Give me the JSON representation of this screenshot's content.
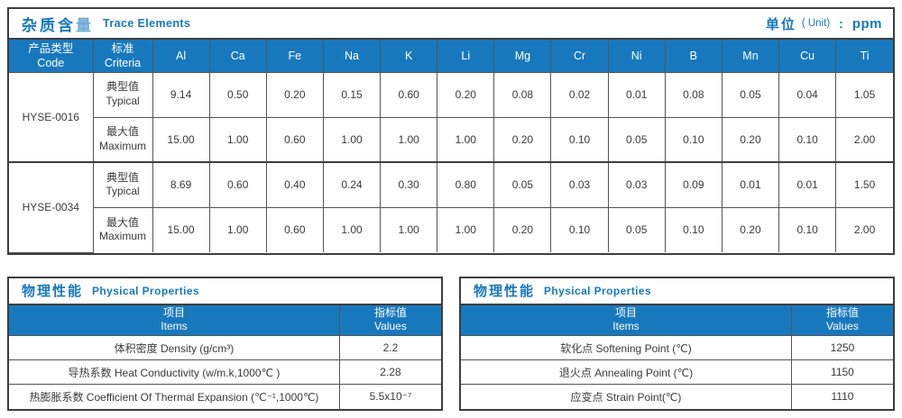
{
  "colors": {
    "accent": "#1878be",
    "border_dark": "#3e3e3e",
    "border_light": "#555555",
    "header_text": "#ffffff",
    "body_text": "#3a3a3a"
  },
  "trace_table": {
    "title_cn_main": "杂质含",
    "title_cn_light": "量",
    "title_en": "Trace Elements",
    "unit_label_cn": "单位",
    "unit_label_en": "( Unit)",
    "unit_colon": ":",
    "unit_value": "ppm",
    "col_headers": {
      "code_cn": "产品类型",
      "code_en": "Code",
      "criteria_cn": "标准",
      "criteria_en": "Criteria"
    },
    "elements": [
      "Al",
      "Ca",
      "Fe",
      "Na",
      "K",
      "Li",
      "Mg",
      "Cr",
      "Ni",
      "B",
      "Mn",
      "Cu",
      "Ti"
    ],
    "rows": [
      {
        "code": "HYSE-0016",
        "criteria_cn": "典型值",
        "criteria_en": "Typical",
        "values": [
          "9.14",
          "0.50",
          "0.20",
          "0.15",
          "0.60",
          "0.20",
          "0.08",
          "0.02",
          "0.01",
          "0.08",
          "0.05",
          "0.04",
          "1.05"
        ]
      },
      {
        "code": "HYSE-0016",
        "criteria_cn": "最大值",
        "criteria_en": "Maximum",
        "values": [
          "15.00",
          "1.00",
          "0.60",
          "1.00",
          "1.00",
          "1.00",
          "0.20",
          "0.10",
          "0.05",
          "0.10",
          "0.20",
          "0.10",
          "2.00"
        ]
      },
      {
        "code": "HYSE-0034",
        "criteria_cn": "典型值",
        "criteria_en": "Typical",
        "values": [
          "8.69",
          "0.60",
          "0.40",
          "0.24",
          "0.30",
          "0.80",
          "0.05",
          "0.03",
          "0.03",
          "0.09",
          "0.01",
          "0.01",
          "1.50"
        ]
      },
      {
        "code": "HYSE-0034",
        "criteria_cn": "最大值",
        "criteria_en": "Maximum",
        "values": [
          "15.00",
          "1.00",
          "0.60",
          "1.00",
          "1.00",
          "1.00",
          "0.20",
          "0.10",
          "0.05",
          "0.10",
          "0.20",
          "0.10",
          "2.00"
        ]
      }
    ]
  },
  "physical_tables": [
    {
      "title_cn": "物理性能",
      "title_en": "Physical Properties",
      "items_header_cn": "项目",
      "items_header_en": "Items",
      "values_header_cn": "指标值",
      "values_header_en": "Values",
      "rows": [
        {
          "item": "体积密度 Density (g/cm³)",
          "value": "2.2"
        },
        {
          "item": "导热系数 Heat Conductivity (w/m.k,1000℃ )",
          "value": "2.28"
        },
        {
          "item": "热膨胀系数 Coefficient Of Thermal Expansion (℃⁻¹,1000℃)",
          "value": "5.5x10⁻⁷"
        }
      ]
    },
    {
      "title_cn": "物理性能",
      "title_en": "Physical Properties",
      "items_header_cn": "项目",
      "items_header_en": "Items",
      "values_header_cn": "指标值",
      "values_header_en": "Values",
      "rows": [
        {
          "item": "软化点 Softening Point (℃)",
          "value": "1250"
        },
        {
          "item": "退火点 Annealing Point (℃)",
          "value": "1150"
        },
        {
          "item": "应变点 Strain Point(℃)",
          "value": "1110"
        }
      ]
    }
  ]
}
